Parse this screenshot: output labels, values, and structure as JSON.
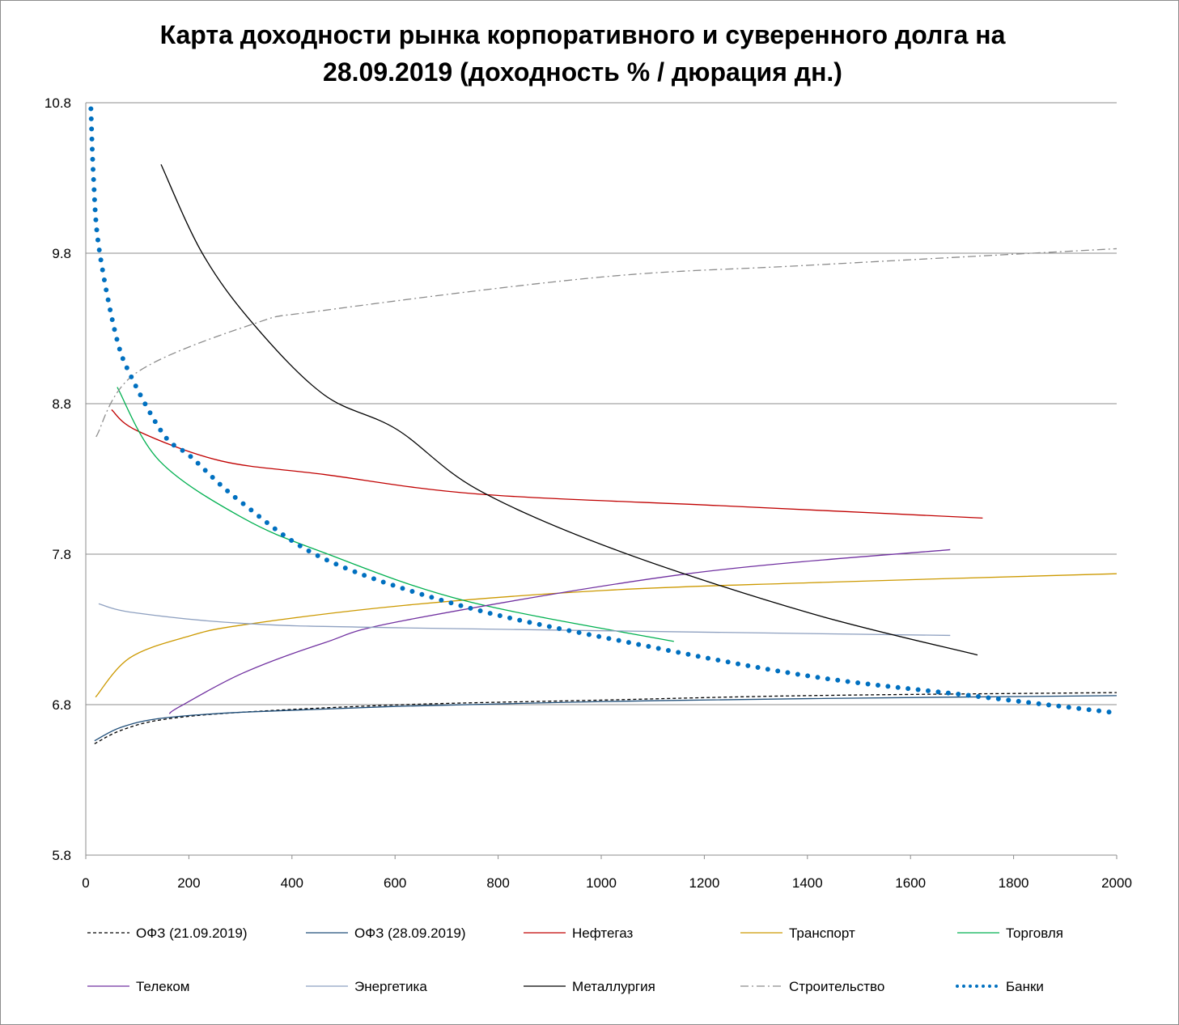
{
  "chart_data": {
    "type": "line",
    "title_line1": "Карта доходности рынка корпоративного и суверенного долга на",
    "title_line2": "28.09.2019 (доходность % / дюрация дн.)",
    "xlabel": "",
    "ylabel": "",
    "xlim": [
      0,
      2000
    ],
    "ylim": [
      5.8,
      10.8
    ],
    "x_ticks": [
      0,
      200,
      400,
      600,
      800,
      1000,
      1200,
      1400,
      1600,
      1800,
      2000
    ],
    "y_ticks": [
      5.8,
      6.8,
      7.8,
      8.8,
      9.8,
      10.8
    ],
    "grid": "horizontal",
    "legend_position": "bottom",
    "series": [
      {
        "name": "ОФЗ (21.09.2019)",
        "color": "#000000",
        "style": "dashed",
        "points": [
          [
            17,
            6.54
          ],
          [
            69,
            6.63
          ],
          [
            148,
            6.7
          ],
          [
            305,
            6.75
          ],
          [
            619,
            6.8
          ],
          [
            1000,
            6.83
          ],
          [
            1403,
            6.86
          ],
          [
            2000,
            6.88
          ]
        ]
      },
      {
        "name": "ОФЗ (28.09.2019)",
        "color": "#1F4E79",
        "style": "solid",
        "points": [
          [
            17,
            6.56
          ],
          [
            69,
            6.65
          ],
          [
            148,
            6.71
          ],
          [
            305,
            6.75
          ],
          [
            619,
            6.79
          ],
          [
            1000,
            6.82
          ],
          [
            1403,
            6.84
          ],
          [
            2000,
            6.86
          ]
        ]
      },
      {
        "name": "Нефтегаз",
        "color": "#C00000",
        "style": "solid",
        "points": [
          [
            50,
            8.76
          ],
          [
            100,
            8.62
          ],
          [
            262,
            8.42
          ],
          [
            462,
            8.33
          ],
          [
            760,
            8.2
          ],
          [
            1246,
            8.12
          ],
          [
            1740,
            8.04
          ]
        ]
      },
      {
        "name": "Транспорт",
        "color": "#CC9900",
        "style": "solid",
        "points": [
          [
            19,
            6.85
          ],
          [
            85,
            7.11
          ],
          [
            195,
            7.25
          ],
          [
            305,
            7.33
          ],
          [
            619,
            7.46
          ],
          [
            1011,
            7.56
          ],
          [
            1403,
            7.61
          ],
          [
            2000,
            7.67
          ]
        ]
      },
      {
        "name": "Торговля",
        "color": "#00B050",
        "style": "solid",
        "points": [
          [
            61,
            8.91
          ],
          [
            143,
            8.42
          ],
          [
            305,
            8.04
          ],
          [
            462,
            7.81
          ],
          [
            736,
            7.49
          ],
          [
            1141,
            7.22
          ]
        ]
      },
      {
        "name": "Телеком",
        "color": "#7030A0",
        "style": "solid",
        "points": [
          [
            162,
            6.74
          ],
          [
            184,
            6.79
          ],
          [
            305,
            7.01
          ],
          [
            462,
            7.21
          ],
          [
            619,
            7.36
          ],
          [
            1168,
            7.67
          ],
          [
            1677,
            7.83
          ]
        ]
      },
      {
        "name": "Энергетика",
        "color": "#8EA0C0",
        "style": "solid",
        "points": [
          [
            25,
            7.47
          ],
          [
            96,
            7.41
          ],
          [
            305,
            7.34
          ],
          [
            619,
            7.31
          ],
          [
            1677,
            7.26
          ]
        ]
      },
      {
        "name": "Металлургия",
        "color": "#000000",
        "style": "solid",
        "points": [
          [
            146,
            10.39
          ],
          [
            226,
            9.8
          ],
          [
            325,
            9.33
          ],
          [
            462,
            8.86
          ],
          [
            603,
            8.63
          ],
          [
            760,
            8.23
          ],
          [
            1027,
            7.83
          ],
          [
            1403,
            7.41
          ],
          [
            1730,
            7.13
          ]
        ]
      },
      {
        "name": "Строительство",
        "color": "#8C8C8C",
        "style": "dashdot",
        "points": [
          [
            20,
            8.58
          ],
          [
            96,
            9.0
          ],
          [
            325,
            9.33
          ],
          [
            462,
            9.42
          ],
          [
            995,
            9.64
          ],
          [
            1403,
            9.72
          ],
          [
            2000,
            9.83
          ]
        ]
      },
      {
        "name": "Банки",
        "color": "#0070C0",
        "style": "dotted",
        "points": [
          [
            10,
            10.76
          ],
          [
            15,
            10.3
          ],
          [
            25,
            9.85
          ],
          [
            58,
            9.26
          ],
          [
            88,
            8.98
          ],
          [
            152,
            8.59
          ],
          [
            203,
            8.45
          ],
          [
            300,
            8.15
          ],
          [
            462,
            7.77
          ],
          [
            736,
            7.45
          ],
          [
            1058,
            7.21
          ],
          [
            1403,
            6.99
          ],
          [
            1717,
            6.86
          ],
          [
            1987,
            6.75
          ]
        ]
      }
    ]
  }
}
